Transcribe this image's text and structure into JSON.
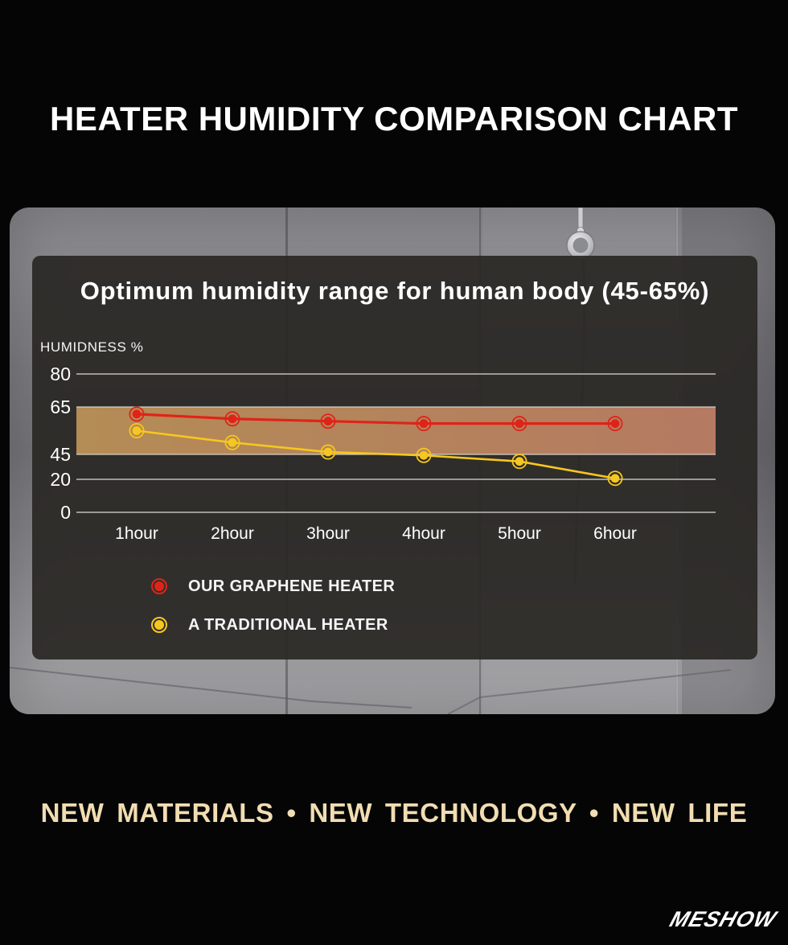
{
  "header": {
    "title": "HEATER HUMIDITY COMPARISON CHART"
  },
  "chart_data": {
    "type": "line",
    "title": "Optimum humidity range for human body (45-65%)",
    "ylabel": "HUMIDNESS %",
    "xlabel": "",
    "categories": [
      "1hour",
      "2hour",
      "3hour",
      "4hour",
      "5hour",
      "6hour"
    ],
    "yticks": [
      80,
      65,
      45,
      20,
      0
    ],
    "ylim": [
      0,
      80
    ],
    "grid": true,
    "band": {
      "from": 45,
      "to": 65,
      "label": "Optimum humidity range (45-65%)",
      "color_left": "#bb9157",
      "color_right": "#bc7e65"
    },
    "series": [
      {
        "name": "OUR GRAPHENE HEATER",
        "color": "#e02318",
        "values": [
          62,
          60,
          59,
          58,
          58,
          58
        ]
      },
      {
        "name": "A TRADITIONAL HEATER",
        "color": "#f6c71e",
        "values": [
          55,
          50,
          46,
          44,
          38,
          21
        ]
      }
    ],
    "legend_position": "bottom-left"
  },
  "footer": {
    "tagline": "NEW MATERIALS •  NEW TECHNOLOGY • NEW LIFE",
    "brand": "MESHOW"
  },
  "colors": {
    "page_background": "#050505",
    "panel_background": "rgba(42,40,37,0.93)",
    "tagline": "#f2ddb2",
    "gridline": "#cfcdc9",
    "band_edge": "#e9e3d9",
    "text": "#ffffff"
  }
}
